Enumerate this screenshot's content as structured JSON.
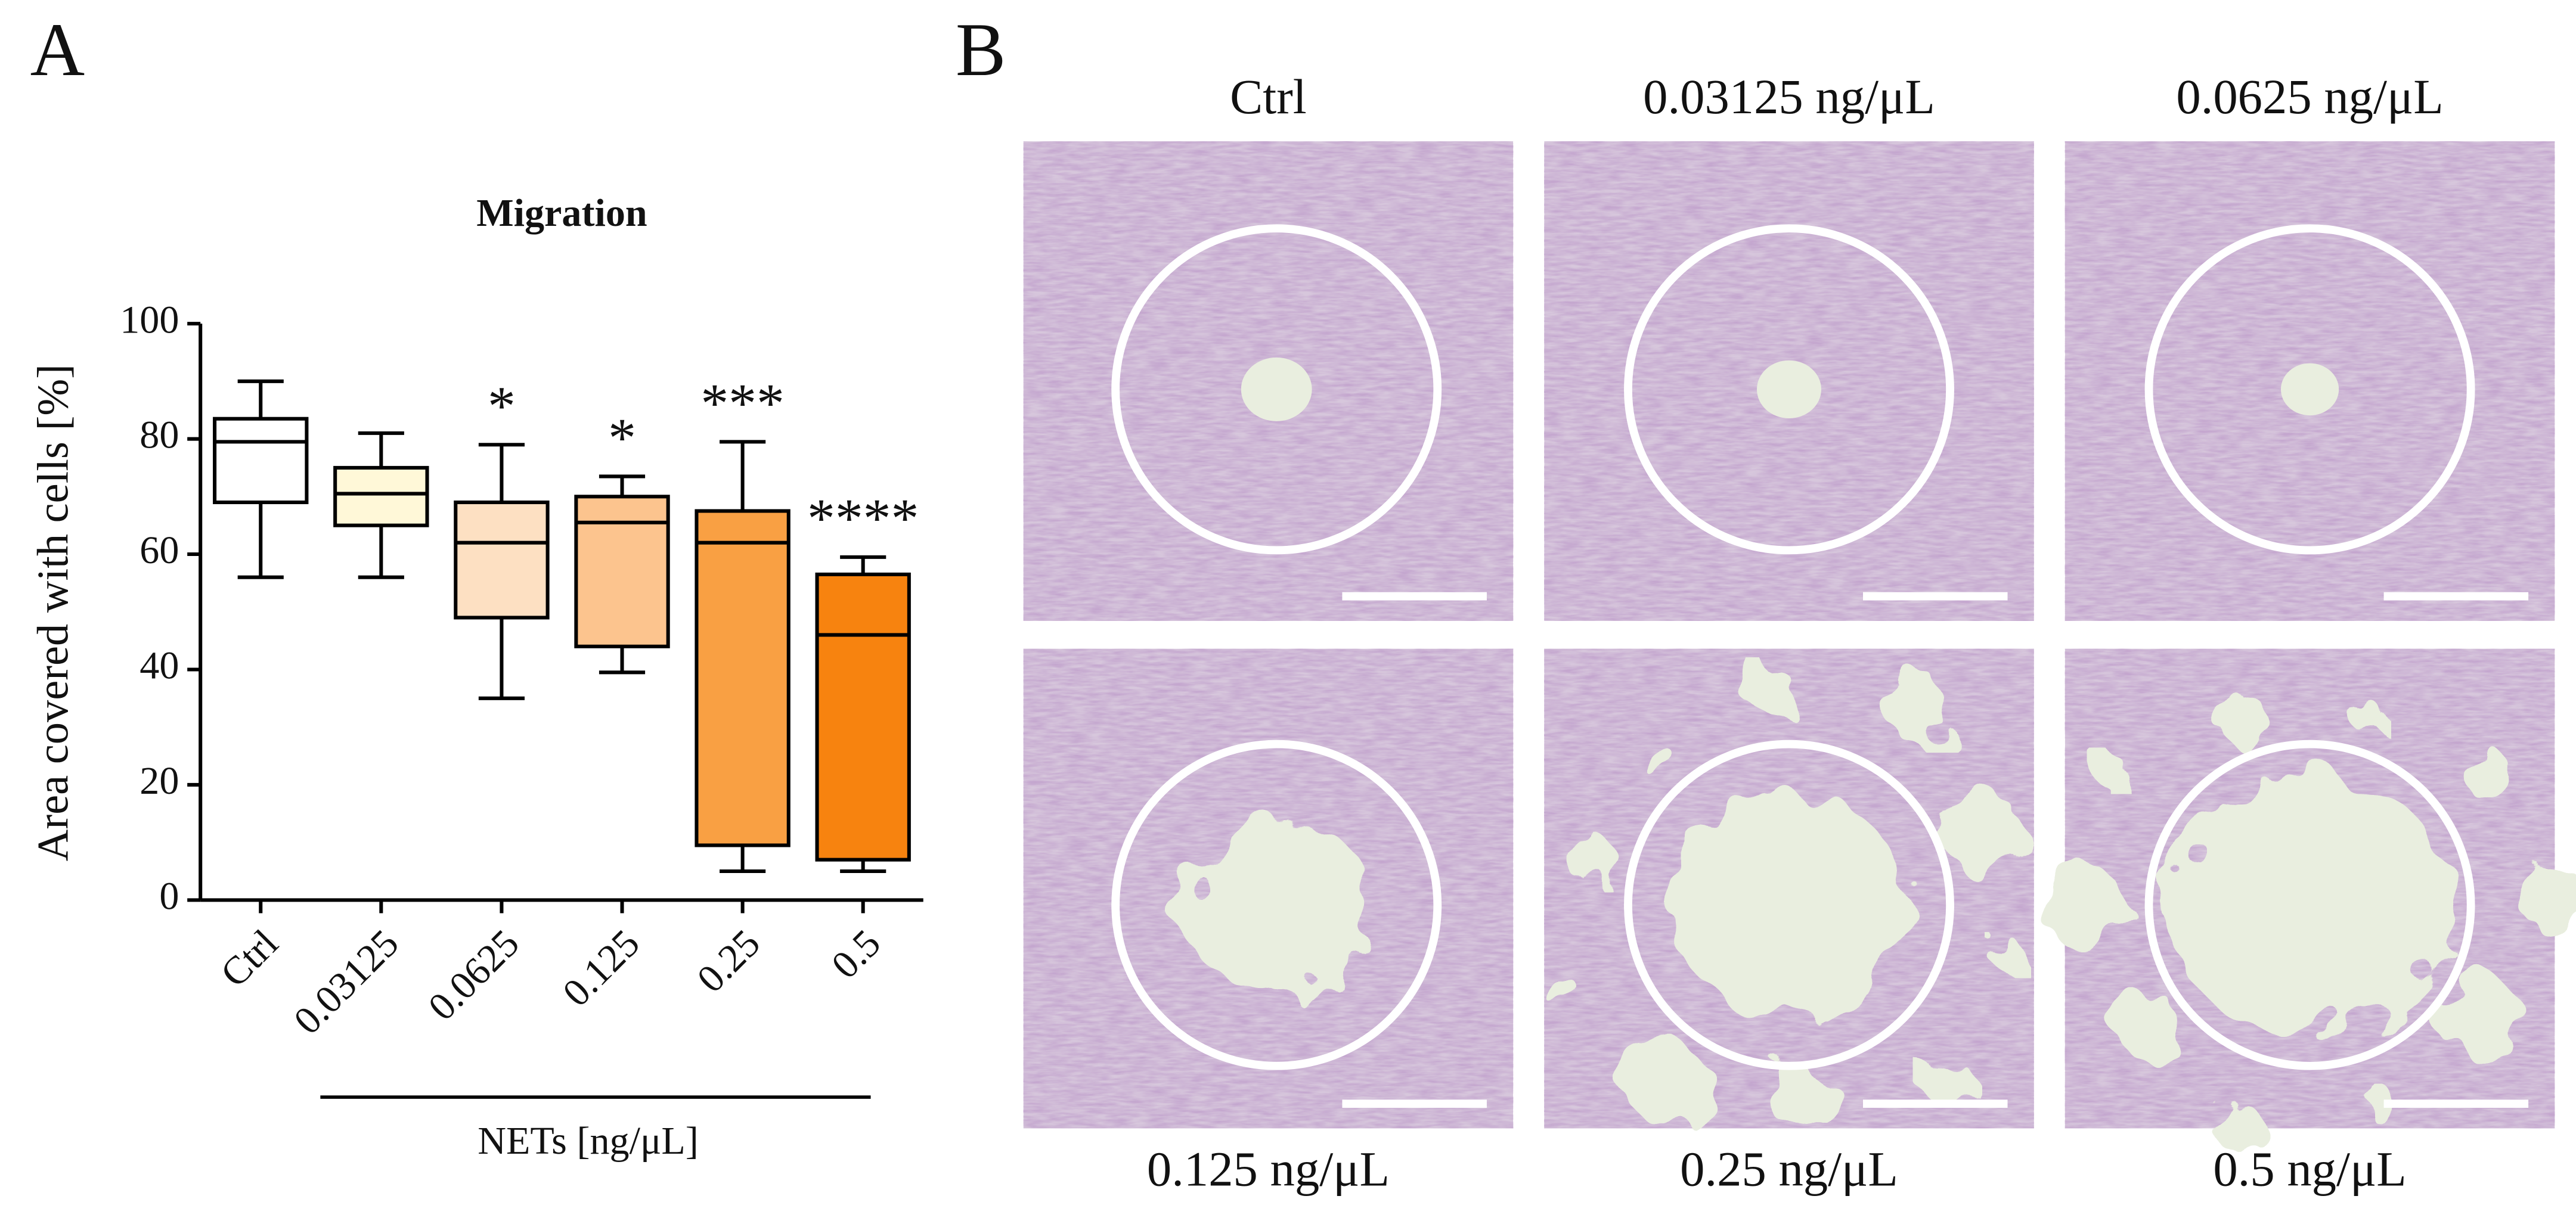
{
  "panels": {
    "a": "A",
    "b": "B"
  },
  "chart_data": {
    "type": "box",
    "title": "Migration",
    "y_label": "Area covered with cells [%]",
    "x_group_label": "NETs [ng/μL]",
    "categories": [
      "Ctrl",
      "0.03125",
      "0.0625",
      "0.125",
      "0.25",
      "0.5"
    ],
    "min": [
      56,
      56,
      35,
      39.5,
      5,
      5
    ],
    "q1": [
      69,
      65,
      49,
      44,
      9.5,
      7
    ],
    "median": [
      79.5,
      70.5,
      62,
      65.5,
      62,
      46
    ],
    "q3": [
      83.5,
      75,
      69,
      70,
      67.5,
      56.5
    ],
    "max": [
      90,
      81,
      79,
      73.5,
      79.5,
      59.5
    ],
    "colors": [
      "#ffffff",
      "#fff8d8",
      "#fde0c2",
      "#fcc48e",
      "#f9a043",
      "#f7830f"
    ],
    "annotations": [
      null,
      null,
      "*",
      "*",
      "***",
      "****"
    ],
    "ylim": [
      0,
      100
    ],
    "yticks": [
      0,
      20,
      40,
      60,
      80,
      100
    ],
    "grid": false
  },
  "images": {
    "captions": [
      "Ctrl",
      "0.03125 ng/μL",
      "0.0625 ng/μL",
      "0.125 ng/μL",
      "0.25 ng/μL",
      "0.5 ng/μL"
    ]
  }
}
